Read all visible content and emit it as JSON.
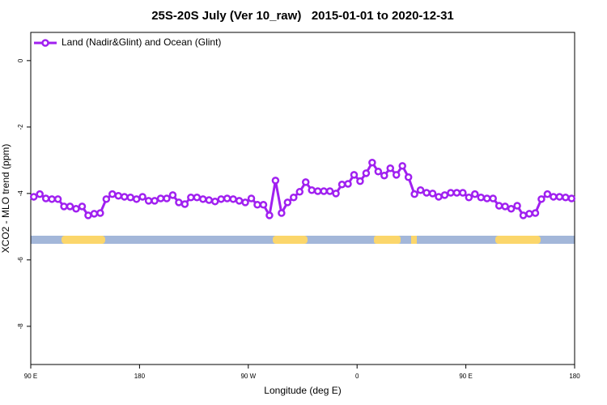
{
  "chart_data": {
    "type": "line",
    "title": "25S-20S July (Ver 10_raw)   2015-01-01 to 2020-12-31",
    "x_label": "Longitude (deg E)",
    "y_label": "XCO2 - MLO trend (ppm)",
    "xlim": [
      90,
      540
    ],
    "xticks": [
      {
        "value": 90,
        "label": "90 E"
      },
      180,
      {
        "value": 270,
        "label": "90 W"
      },
      {
        "value": 360,
        "label": "0"
      },
      {
        "value": 450,
        "label": "90 E"
      },
      {
        "value": 540,
        "label": "180"
      }
    ],
    "ylim": [
      -9.15,
      0.85
    ],
    "yticks": [
      0,
      -2,
      -4,
      -6,
      -8
    ],
    "x": [
      92.5,
      97.5,
      102.5,
      107.5,
      112.5,
      117.5,
      122.5,
      127.5,
      132.5,
      137.5,
      142.5,
      147.5,
      152.5,
      157.5,
      162.5,
      167.5,
      172.5,
      177.5,
      182.5,
      187.5,
      192.5,
      197.5,
      202.5,
      207.5,
      212.5,
      217.5,
      222.5,
      227.5,
      232.5,
      237.5,
      242.5,
      247.5,
      252.5,
      257.5,
      262.5,
      267.5,
      272.5,
      277.5,
      282.5,
      287.5,
      292.5,
      297.5,
      302.5,
      307.5,
      312.5,
      317.5,
      322.5,
      327.5,
      332.5,
      337.5,
      342.5,
      347.5,
      352.5,
      357.5,
      362.5,
      367.5,
      372.5,
      377.5,
      382.5,
      387.5,
      392.5,
      397.5,
      402.5,
      407.5,
      412.5,
      417.5,
      422.5,
      427.5,
      432.5,
      437.5,
      442.5,
      447.5,
      452.5,
      457.5,
      462.5,
      467.5,
      472.5,
      477.5,
      482.5,
      487.5,
      492.5,
      497.5,
      502.5,
      507.5,
      512.5,
      517.5,
      522.5,
      527.5,
      532.5,
      537.5
    ],
    "series": [
      {
        "name": "Land (Nadir&Glint) and Ocean (Glint)",
        "color": "#a020f0",
        "values": [
          -4.1,
          -4.02,
          -4.15,
          -4.17,
          -4.17,
          -4.39,
          -4.39,
          -4.46,
          -4.39,
          -4.66,
          -4.61,
          -4.59,
          -4.17,
          -4.02,
          -4.07,
          -4.1,
          -4.12,
          -4.17,
          -4.1,
          -4.22,
          -4.22,
          -4.15,
          -4.15,
          -4.05,
          -4.27,
          -4.32,
          -4.12,
          -4.12,
          -4.17,
          -4.2,
          -4.24,
          -4.17,
          -4.15,
          -4.17,
          -4.22,
          -4.27,
          -4.15,
          -4.34,
          -4.34,
          -4.66,
          -3.61,
          -4.59,
          -4.27,
          -4.12,
          -3.95,
          -3.66,
          -3.9,
          -3.93,
          -3.93,
          -3.93,
          -4.0,
          -3.73,
          -3.71,
          -3.44,
          -3.63,
          -3.39,
          -3.07,
          -3.34,
          -3.46,
          -3.24,
          -3.44,
          -3.17,
          -3.51,
          -4.02,
          -3.9,
          -3.98,
          -4.0,
          -4.1,
          -4.05,
          -3.98,
          -3.98,
          -3.98,
          -4.12,
          -4.02,
          -4.12,
          -4.15,
          -4.15,
          -4.37,
          -4.39,
          -4.46,
          -4.37,
          -4.66,
          -4.61,
          -4.59,
          -4.17,
          -4.02,
          -4.1,
          -4.1,
          -4.12,
          -4.15
        ]
      }
    ],
    "legend": "top-left"
  }
}
